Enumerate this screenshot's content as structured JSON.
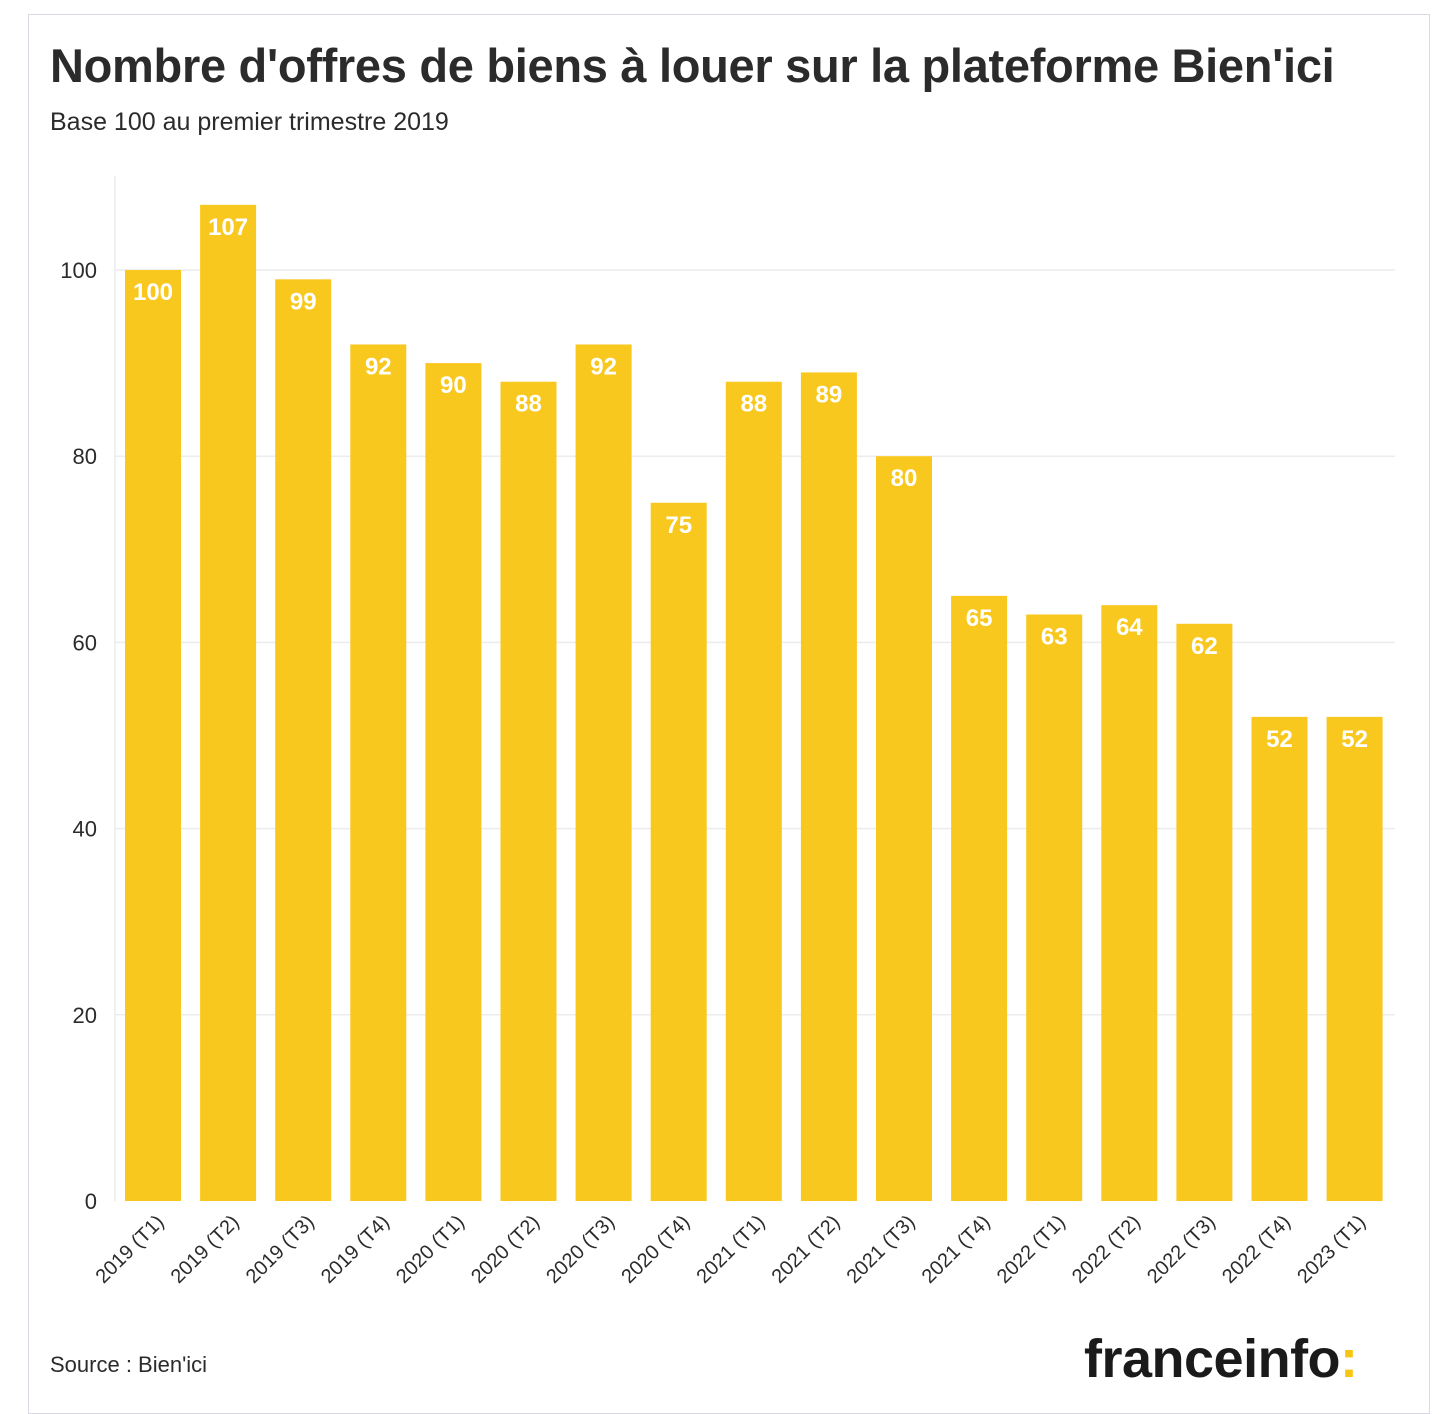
{
  "chart_data": {
    "type": "bar",
    "title": "Nombre d'offres de biens à louer sur la plateforme Bien'ici",
    "subtitle": "Base 100 au premier trimestre 2019",
    "categories": [
      "2019 (T1)",
      "2019 (T2)",
      "2019 (T3)",
      "2019 (T4)",
      "2020 (T1)",
      "2020 (T2)",
      "2020 (T3)",
      "2020 (T4)",
      "2021 (T1)",
      "2021 (T2)",
      "2021 (T3)",
      "2021 (T4)",
      "2022 (T1)",
      "2022 (T2)",
      "2022 (T3)",
      "2022 (T4)",
      "2023 (T1)"
    ],
    "values": [
      100,
      107,
      99,
      92,
      90,
      88,
      92,
      75,
      88,
      89,
      80,
      65,
      63,
      64,
      62,
      52,
      52
    ],
    "ylim": [
      0,
      110
    ],
    "yticks": [
      0,
      20,
      40,
      60,
      80,
      100
    ],
    "grid": true,
    "data_labels": true,
    "bar_color": "#f9c81f",
    "label_color": "#ffffff"
  },
  "footer": {
    "source": "Source : Bien'ici",
    "brand": "franceinfo",
    "brand_colon": ":",
    "brand_accent": "#f9c513"
  }
}
